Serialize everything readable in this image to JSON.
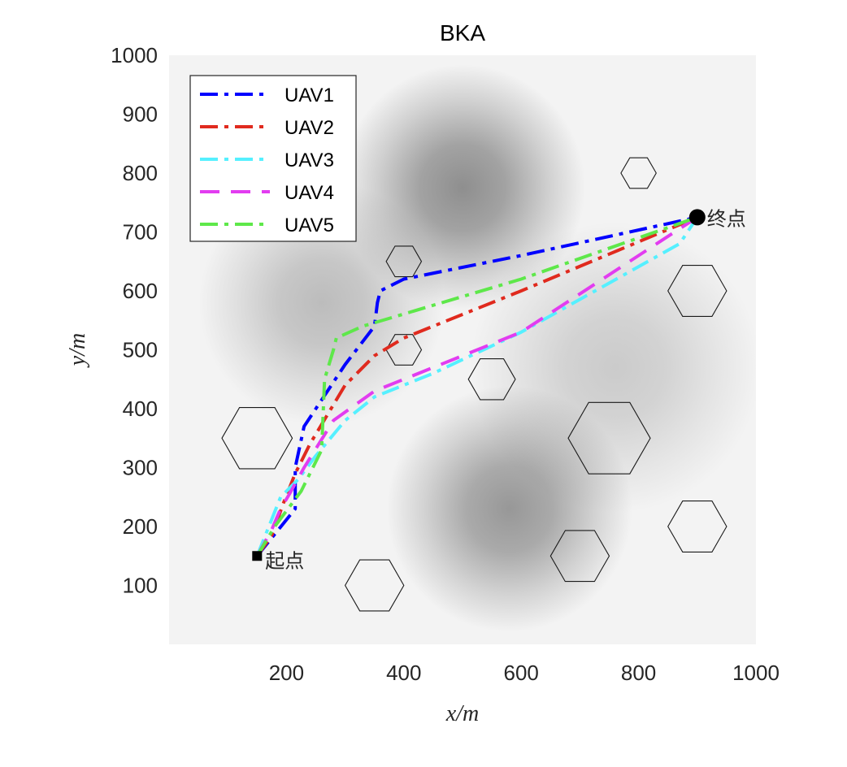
{
  "chart_data": {
    "type": "line",
    "title": "BKA",
    "xlabel": "x/m",
    "ylabel": "y/m",
    "xlim": [
      0,
      1000
    ],
    "ylim": [
      0,
      1000
    ],
    "xticks": [
      200,
      400,
      600,
      800,
      1000
    ],
    "yticks": [
      100,
      200,
      300,
      400,
      500,
      600,
      700,
      800,
      900,
      1000
    ],
    "xtick_labels": [
      "200",
      "400",
      "600",
      "800",
      "1000"
    ],
    "ytick_labels": [
      "100",
      "200",
      "300",
      "400",
      "500",
      "600",
      "700",
      "800",
      "900",
      "1000"
    ],
    "legend_position": "top-left",
    "background": {
      "type": "grayscale-terrain",
      "peaks": [
        {
          "x": 500,
          "y": 775,
          "height": 0.55,
          "spread": 110
        },
        {
          "x": 580,
          "y": 230,
          "height": 0.5,
          "spread": 110
        },
        {
          "x": 260,
          "y": 580,
          "height": 0.3,
          "spread": 110
        },
        {
          "x": 760,
          "y": 470,
          "height": 0.22,
          "spread": 130
        }
      ]
    },
    "start": {
      "x": 150,
      "y": 150,
      "label": "起点",
      "marker": "square"
    },
    "end": {
      "x": 900,
      "y": 725,
      "label": "终点",
      "marker": "circle"
    },
    "obstacles": [
      {
        "x": 150,
        "y": 350,
        "r": 60
      },
      {
        "x": 350,
        "y": 100,
        "r": 50
      },
      {
        "x": 400,
        "y": 650,
        "r": 30
      },
      {
        "x": 400,
        "y": 500,
        "r": 30
      },
      {
        "x": 550,
        "y": 450,
        "r": 40
      },
      {
        "x": 700,
        "y": 150,
        "r": 50
      },
      {
        "x": 750,
        "y": 350,
        "r": 70
      },
      {
        "x": 800,
        "y": 800,
        "r": 30
      },
      {
        "x": 900,
        "y": 600,
        "r": 50
      },
      {
        "x": 900,
        "y": 200,
        "r": 50
      }
    ],
    "series": [
      {
        "name": "UAV1",
        "color": "#0000ff",
        "dash": "dashdot",
        "x": [
          150,
          215,
          215,
          230,
          300,
          350,
          355,
          360,
          400,
          600,
          900
        ],
        "y": [
          150,
          230,
          300,
          370,
          475,
          540,
          580,
          600,
          620,
          660,
          725
        ]
      },
      {
        "name": "UAV2",
        "color": "#e02a1e",
        "dash": "dashdot",
        "x": [
          150,
          175,
          195,
          215,
          240,
          300,
          350,
          400,
          600,
          900
        ],
        "y": [
          150,
          185,
          240,
          290,
          340,
          440,
          490,
          520,
          600,
          725
        ]
      },
      {
        "name": "UAV3",
        "color": "#55f0ff",
        "dash": "dashdot",
        "x": [
          150,
          180,
          190,
          220,
          250,
          300,
          350,
          450,
          600,
          870,
          900
        ],
        "y": [
          150,
          225,
          250,
          280,
          320,
          380,
          420,
          460,
          530,
          680,
          725
        ]
      },
      {
        "name": "UAV4",
        "color": "#e23cf0",
        "dash": "dash",
        "x": [
          150,
          175,
          190,
          205,
          230,
          280,
          350,
          450,
          600,
          900
        ],
        "y": [
          150,
          195,
          230,
          255,
          300,
          380,
          430,
          470,
          530,
          725
        ]
      },
      {
        "name": "UAV5",
        "color": "#5ee84a",
        "dash": "dashdot",
        "x": [
          150,
          180,
          225,
          260,
          265,
          280,
          285,
          330,
          600,
          900
        ],
        "y": [
          150,
          200,
          260,
          330,
          450,
          500,
          520,
          540,
          620,
          725
        ]
      }
    ]
  }
}
